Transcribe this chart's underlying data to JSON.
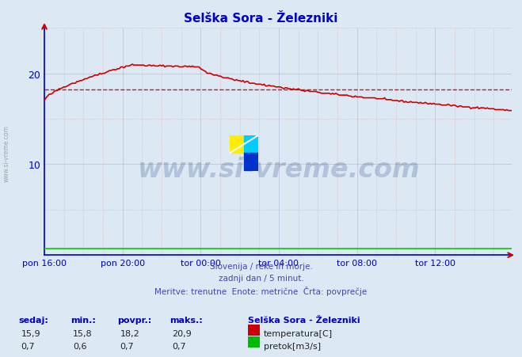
{
  "title": "Selška Sora - Železniki",
  "background_color": "#dce9f5",
  "plot_bg_color": "#dce9f5",
  "title_color": "#0000cc",
  "ylim": [
    0,
    25
  ],
  "yticks": [
    10,
    20
  ],
  "xlim": [
    0,
    287
  ],
  "xtick_labels": [
    "pon 16:00",
    "pon 20:00",
    "tor 00:00",
    "tor 04:00",
    "tor 08:00",
    "tor 12:00"
  ],
  "xtick_positions": [
    0,
    48,
    96,
    144,
    192,
    240
  ],
  "avg_temp": 18.2,
  "watermark_text": "www.si-vreme.com",
  "footer_lines": [
    "Slovenija / reke in morje.",
    "zadnji dan / 5 minut.",
    "Meritve: trenutne  Enote: metrične  Črta: povprečje"
  ],
  "stats_headers": [
    "sedaj:",
    "min.:",
    "povpr.:",
    "maks.:"
  ],
  "stats_temp": [
    "15,9",
    "15,8",
    "18,2",
    "20,9"
  ],
  "stats_flow": [
    "0,7",
    "0,6",
    "0,7",
    "0,7"
  ],
  "legend_title": "Selška Sora - Železniki",
  "legend_temp_label": "temperatura[C]",
  "legend_temp_color": "#cc0000",
  "legend_flow_label": "pretok[m3/s]",
  "legend_flow_color": "#00bb00",
  "temp_color": "#cc0000",
  "flow_color": "#00cc00",
  "avg_line_color": "#cc0000",
  "spine_color": "#0000bb",
  "tick_color": "#0000bb",
  "grid_major_color": "#aaaacc",
  "grid_minor_color": "#ddaaaa",
  "sidebar_text": "www.si-vreme.com"
}
